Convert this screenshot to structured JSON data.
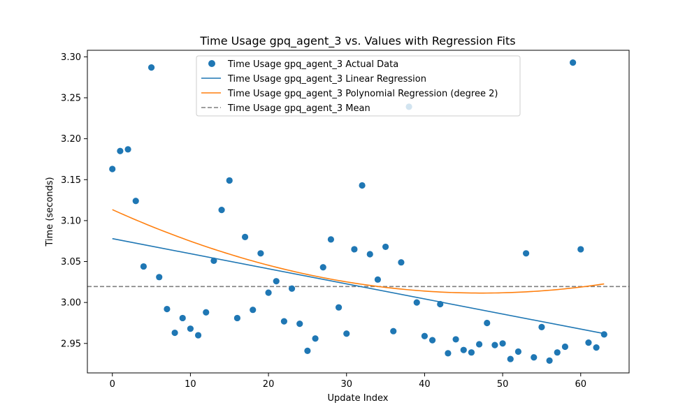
{
  "chart_data": {
    "type": "scatter",
    "title": "Time Usage gpq_agent_3 vs. Values with Regression Fits",
    "xlabel": "Update Index",
    "ylabel": "Time (seconds)",
    "xlim": [
      -3.2,
      66.2
    ],
    "ylim": [
      2.914,
      3.308
    ],
    "xticks": [
      0,
      10,
      20,
      30,
      40,
      50,
      60
    ],
    "yticks": [
      2.95,
      3.0,
      3.05,
      3.1,
      3.15,
      3.2,
      3.25,
      3.3
    ],
    "ytick_labels": [
      "2.95",
      "3.00",
      "3.05",
      "3.10",
      "3.15",
      "3.20",
      "3.25",
      "3.30"
    ],
    "grid": false,
    "legend_position": "top-center",
    "colors": {
      "actual": "#1f77b4",
      "linear": "#1f77b4",
      "poly": "#ff7f0e",
      "mean": "#7f7f7f"
    },
    "series": [
      {
        "name": "Time Usage gpq_agent_3 Actual Data",
        "kind": "scatter",
        "x": [
          0,
          1,
          2,
          3,
          4,
          5,
          6,
          7,
          8,
          9,
          10,
          11,
          12,
          13,
          14,
          15,
          16,
          17,
          18,
          19,
          20,
          21,
          22,
          23,
          24,
          25,
          26,
          27,
          28,
          29,
          30,
          31,
          32,
          33,
          34,
          35,
          36,
          37,
          38,
          39,
          40,
          41,
          42,
          43,
          44,
          45,
          46,
          47,
          48,
          49,
          50,
          51,
          52,
          53,
          54,
          55,
          56,
          57,
          58,
          59,
          60,
          61,
          62,
          63
        ],
        "y": [
          3.163,
          3.185,
          3.187,
          3.124,
          3.044,
          3.287,
          3.031,
          2.992,
          2.963,
          2.981,
          2.968,
          2.96,
          2.988,
          3.051,
          3.113,
          3.149,
          2.981,
          3.08,
          2.991,
          3.06,
          3.012,
          3.026,
          2.977,
          3.017,
          2.974,
          2.941,
          2.956,
          3.043,
          3.077,
          2.994,
          2.962,
          3.065,
          3.143,
          3.059,
          3.028,
          3.068,
          2.965,
          3.049,
          3.239,
          3.0,
          2.959,
          2.954,
          2.998,
          2.938,
          2.955,
          2.942,
          2.939,
          2.949,
          2.975,
          2.948,
          2.95,
          2.931,
          2.94,
          3.06,
          2.933,
          2.97,
          2.929,
          2.939,
          2.946,
          3.293,
          3.065,
          2.951,
          2.945,
          2.961
        ]
      },
      {
        "name": "Time Usage gpq_agent_3 Linear Regression",
        "kind": "line",
        "x": [
          0,
          63
        ],
        "y": [
          3.078,
          2.962
        ]
      },
      {
        "name": "Time Usage gpq_agent_3 Polynomial Regression (degree 2)",
        "kind": "curve",
        "coefficients": [
          3.1134,
          -0.004306,
          4.55e-05
        ],
        "x_range": [
          0,
          63
        ]
      },
      {
        "name": "Time Usage gpq_agent_3 Mean",
        "kind": "hline",
        "y": 3.0195
      }
    ]
  }
}
